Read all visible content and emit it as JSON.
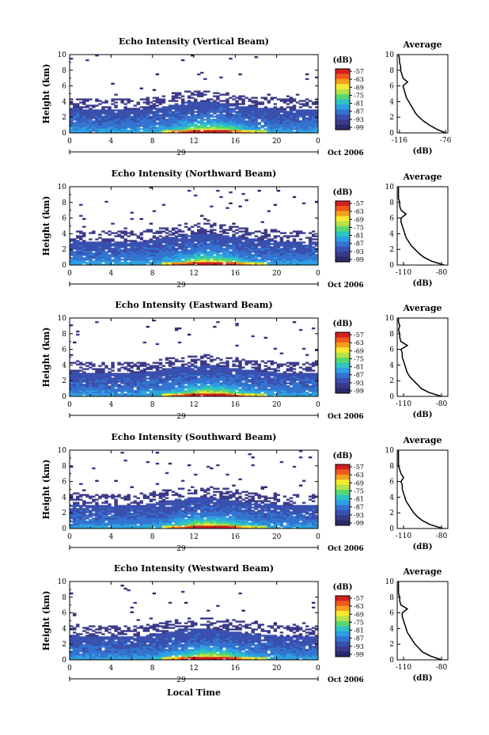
{
  "figure": {
    "xlabel": "Local Time",
    "date_label": "Oct 2006",
    "colorbar_unit": "(dB)",
    "colorbar_levels": [
      "-57",
      "-63",
      "-69",
      "-75",
      "-81",
      "-87",
      "-93",
      "-99"
    ],
    "colorbar_colors": [
      "#d22020",
      "#ef5a1e",
      "#f4a020",
      "#f7ea2e",
      "#b6e24a",
      "#57d86e",
      "#2ec4c4",
      "#2e9fe2",
      "#3473d0",
      "#3a50ae",
      "#3b3a8a",
      "#2b2a6a"
    ],
    "profile_title": "Average",
    "profile_xlabel": "(dB)",
    "yticks": [
      "0",
      "2",
      "4",
      "6",
      "8",
      "10"
    ],
    "xticks": [
      "0",
      "4",
      "8",
      "12",
      "16",
      "20",
      "0"
    ]
  },
  "chart_data": [
    {
      "type": "heatmap",
      "title": "Echo Intensity (Vertical Beam)",
      "ylabel": "Height (km)",
      "day_label": "29",
      "xlim": [
        0,
        24
      ],
      "ylim": [
        0,
        10
      ],
      "profile": {
        "xticks": [
          "-116",
          "-76"
        ],
        "xlim": [
          -118,
          -74
        ],
        "heights": [
          0,
          0.5,
          1,
          1.5,
          2,
          2.5,
          3,
          3.5,
          4,
          4.5,
          5,
          5.5,
          6,
          6.5,
          7,
          7.5,
          8,
          8.5,
          9,
          9.5,
          10
        ],
        "values": [
          -76,
          -84,
          -90,
          -95,
          -99,
          -102,
          -104,
          -106,
          -108,
          -110,
          -111,
          -112,
          -113,
          -109,
          -113,
          -114,
          -115,
          -115,
          -116,
          -116,
          -117
        ]
      }
    },
    {
      "type": "heatmap",
      "title": "Echo Intensity (Northward Beam)",
      "ylabel": "Height (km)",
      "day_label": "29",
      "xlim": [
        0,
        24
      ],
      "ylim": [
        0,
        10
      ],
      "profile": {
        "xticks": [
          "-110",
          "-80"
        ],
        "xlim": [
          -115,
          -75
        ],
        "heights": [
          0,
          0.5,
          1,
          1.5,
          2,
          2.5,
          3,
          3.5,
          4,
          4.5,
          5,
          5.5,
          6,
          6.5,
          7,
          7.5,
          8,
          8.5,
          9,
          9.5,
          10
        ],
        "values": [
          -78,
          -88,
          -94,
          -98,
          -101,
          -104,
          -106,
          -108,
          -109,
          -110,
          -111,
          -112,
          -112,
          -108,
          -112,
          -113,
          -113,
          -114,
          -114,
          -114,
          -114
        ]
      }
    },
    {
      "type": "heatmap",
      "title": "Echo Intensity (Eastward Beam)",
      "ylabel": "Height (km)",
      "day_label": "29",
      "xlim": [
        0,
        24
      ],
      "ylim": [
        0,
        10
      ],
      "profile": {
        "xticks": [
          "-110",
          "-80"
        ],
        "xlim": [
          -115,
          -75
        ],
        "heights": [
          0,
          0.5,
          1,
          1.5,
          2,
          2.5,
          3,
          3.5,
          4,
          4.5,
          5,
          5.5,
          6,
          6.5,
          7,
          7.5,
          8,
          8.5,
          9,
          9.5,
          10
        ],
        "values": [
          -80,
          -90,
          -96,
          -99,
          -102,
          -105,
          -107,
          -108,
          -109,
          -110,
          -111,
          -111,
          -112,
          -107,
          -112,
          -113,
          -113,
          -114,
          -113,
          -114,
          -114
        ]
      }
    },
    {
      "type": "heatmap",
      "title": "Echo Intensity (Southward Beam)",
      "ylabel": "Height (km)",
      "day_label": "29",
      "xlim": [
        0,
        24
      ],
      "ylim": [
        0,
        10
      ],
      "profile": {
        "xticks": [
          "-110",
          "-80"
        ],
        "xlim": [
          -115,
          -75
        ],
        "heights": [
          0,
          0.5,
          1,
          1.5,
          2,
          2.5,
          3,
          3.5,
          4,
          4.5,
          5,
          5.5,
          6,
          6.5,
          7,
          7.5,
          8,
          8.5,
          9,
          9.5,
          10
        ],
        "values": [
          -79,
          -89,
          -95,
          -99,
          -102,
          -104,
          -106,
          -108,
          -109,
          -110,
          -111,
          -111,
          -112,
          -110,
          -112,
          -113,
          -114,
          -114,
          -114,
          -114,
          -114
        ]
      }
    },
    {
      "type": "heatmap",
      "title": "Echo Intensity (Westward Beam)",
      "ylabel": "Height (km)",
      "day_label": "29",
      "xlim": [
        0,
        24
      ],
      "ylim": [
        0,
        10
      ],
      "profile": {
        "xticks": [
          "-110",
          "-80"
        ],
        "xlim": [
          -115,
          -75
        ],
        "heights": [
          0,
          0.5,
          1,
          1.5,
          2,
          2.5,
          3,
          3.5,
          4,
          4.5,
          5,
          5.5,
          6,
          6.5,
          7,
          7.5,
          8,
          8.5,
          9,
          9.5,
          10
        ],
        "values": [
          -80,
          -89,
          -95,
          -98,
          -101,
          -103,
          -105,
          -107,
          -108,
          -109,
          -110,
          -111,
          -111,
          -107,
          -112,
          -113,
          -113,
          -114,
          -114,
          -114,
          -114
        ]
      }
    }
  ]
}
